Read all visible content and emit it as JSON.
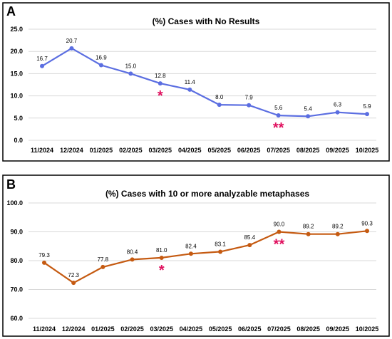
{
  "colors": {
    "series_a": "#5b6ee1",
    "series_b": "#c55a11",
    "asterisk": "#e0115f"
  },
  "chart_data": [
    {
      "panel": "A",
      "type": "line",
      "title": "(%) Cases with No Results",
      "categories": [
        "11/2024",
        "12/2024",
        "01/2025",
        "02/2025",
        "03/2025",
        "04/2025",
        "05/2025",
        "06/2025",
        "07/2025",
        "08/2025",
        "09/2025",
        "10/2025"
      ],
      "series": [
        {
          "values": [
            16.7,
            20.7,
            16.9,
            15.0,
            12.8,
            11.4,
            8.0,
            7.9,
            5.6,
            5.4,
            6.3,
            5.9
          ]
        }
      ],
      "data_labels": [
        "16.7",
        "20.7",
        "16.9",
        "15.0",
        "12.8",
        "11.4",
        "8.0",
        "7.9",
        "5.6",
        "5.4",
        "6.3",
        "5.9"
      ],
      "ylim": [
        0,
        25
      ],
      "yticks": [
        0,
        5,
        10,
        15,
        20,
        25
      ],
      "ytick_labels": [
        "0.0",
        "5.0",
        "10.0",
        "15.0",
        "20.0",
        "25.0"
      ],
      "grid": true,
      "legend": "none",
      "annotations": [
        {
          "category": "03/2025",
          "text": "*"
        },
        {
          "category": "07/2025",
          "text": "**"
        }
      ]
    },
    {
      "panel": "B",
      "type": "line",
      "title": "(%) Cases with 10 or more analyzable metaphases",
      "categories": [
        "11/2024",
        "12/2024",
        "01/2025",
        "02/2025",
        "03/2025",
        "04/2025",
        "05/2025",
        "06/2025",
        "07/2025",
        "08/2025",
        "09/2025",
        "10/2025"
      ],
      "series": [
        {
          "values": [
            79.3,
            72.3,
            77.8,
            80.4,
            81.0,
            82.4,
            83.1,
            85.4,
            90.0,
            89.2,
            89.2,
            90.3
          ]
        }
      ],
      "data_labels": [
        "79.3",
        "72.3",
        "77.8",
        "80.4",
        "81.0",
        "82.4",
        "83.1",
        "85.4",
        "90.0",
        "89.2",
        "89.2",
        "90.3"
      ],
      "ylim": [
        60,
        100
      ],
      "yticks": [
        60,
        70,
        80,
        90,
        100
      ],
      "ytick_labels": [
        "60.0",
        "70.0",
        "80.0",
        "90.0",
        "100.0"
      ],
      "grid": true,
      "legend": "none",
      "annotations": [
        {
          "category": "03/2025",
          "text": "*"
        },
        {
          "category": "07/2025",
          "text": "**"
        }
      ]
    }
  ]
}
